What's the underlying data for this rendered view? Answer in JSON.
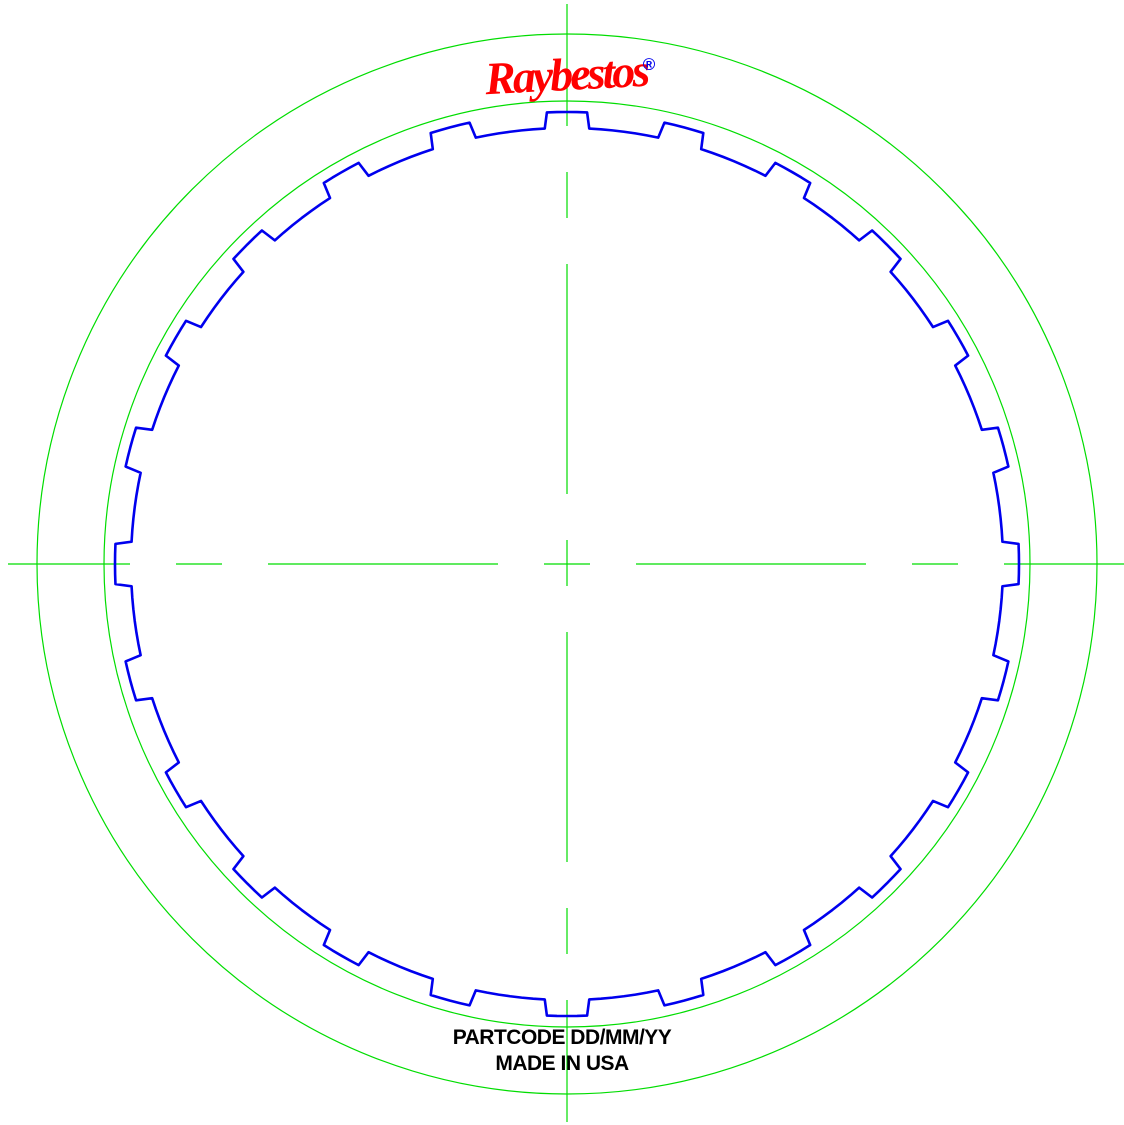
{
  "logo": {
    "text": "Raybestos",
    "registered_mark": "®"
  },
  "stamp": {
    "line1": "PARTCODE DD/MM/YY",
    "line2": "MADE IN USA"
  },
  "plate": {
    "tooth_count": 24
  },
  "colors": {
    "guide_lines": "#00dd00",
    "plate_outline": "#0000ee",
    "logo": "#ff0000",
    "registered_mark": "#0000ee",
    "stamp_text": "#000000"
  }
}
